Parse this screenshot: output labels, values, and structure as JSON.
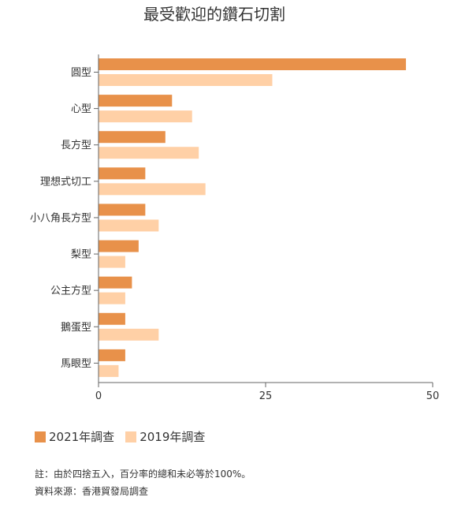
{
  "chart_data": {
    "type": "bar",
    "orientation": "horizontal",
    "title": "最受歡迎的鑽石切割",
    "categories": [
      "圓型",
      "心型",
      "長方型",
      "理想式切工",
      "小八角長方型",
      "梨型",
      "公主方型",
      "鵝蛋型",
      "馬眼型"
    ],
    "series": [
      {
        "name": "2021年調查",
        "color": "#e8914a",
        "values": [
          46,
          11,
          10,
          7,
          7,
          6,
          5,
          4,
          4
        ]
      },
      {
        "name": "2019年調查",
        "color": "#ffd0a6",
        "values": [
          26,
          14,
          15,
          16,
          9,
          4,
          4,
          9,
          3
        ]
      }
    ],
    "xlim": [
      0,
      50
    ],
    "xticks": [
      "0",
      "25",
      "50"
    ],
    "grid": false,
    "legend_position": "bottom-left"
  },
  "notes": {
    "line1": "註：由於四捨五入，百分率的總和未必等於100%。",
    "line2": "資料來源：香港貿發局調查"
  }
}
